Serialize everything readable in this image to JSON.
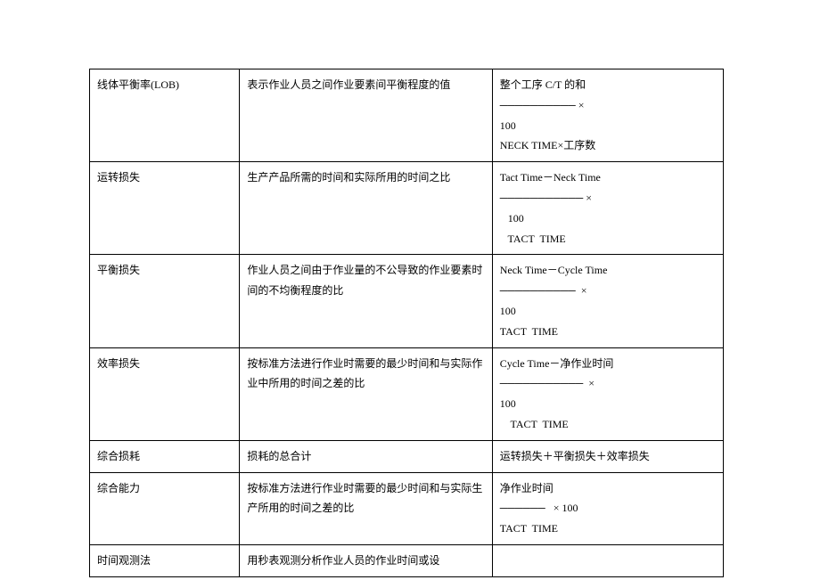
{
  "table": {
    "rows": [
      {
        "term": "线体平衡率(LOB)",
        "definition": "表示作业人员之间作业要素间平衡程度的值",
        "formula_lines": [
          "整个工序 C/T 的和",
          "────────── ×",
          "100",
          "NECK TIME×工序数"
        ]
      },
      {
        "term": "运转损失",
        "definition": "生产产品所需的时间和实际所用的时间之比",
        "formula_lines": [
          "Tact Time－Neck Time",
          "─────────── ×",
          "   100",
          "   TACT  TIME"
        ]
      },
      {
        "term": "平衡损失",
        "definition": "作业人员之间由于作业量的不公导致的作业要素时间的不均衡程度的比",
        "formula_lines": [
          "Neck Time－Cycle Time",
          "──────────  ×",
          "100",
          "TACT  TIME"
        ]
      },
      {
        "term": "效率损失",
        "definition": "按标准方法进行作业时需要的最少时间和与实际作业中所用的时间之差的比",
        "formula_lines": [
          "Cycle Time－净作业时间",
          "───────────  ×",
          "100",
          "    TACT  TIME"
        ]
      },
      {
        "term": "综合损耗",
        "definition": "损耗的总合计",
        "formula_lines": [
          "运转损失＋平衡损失＋效率损失"
        ]
      },
      {
        "term": "综合能力",
        "definition": "按标准方法进行作业时需要的最少时间和与实际生产所用的时间之差的比",
        "formula_lines": [
          "净作业时间",
          "──────   × 100",
          "TACT  TIME"
        ]
      },
      {
        "term": "时间观测法",
        "definition": "用秒表观测分析作业人员的作业时间或设",
        "formula_lines": [
          ""
        ]
      }
    ]
  }
}
